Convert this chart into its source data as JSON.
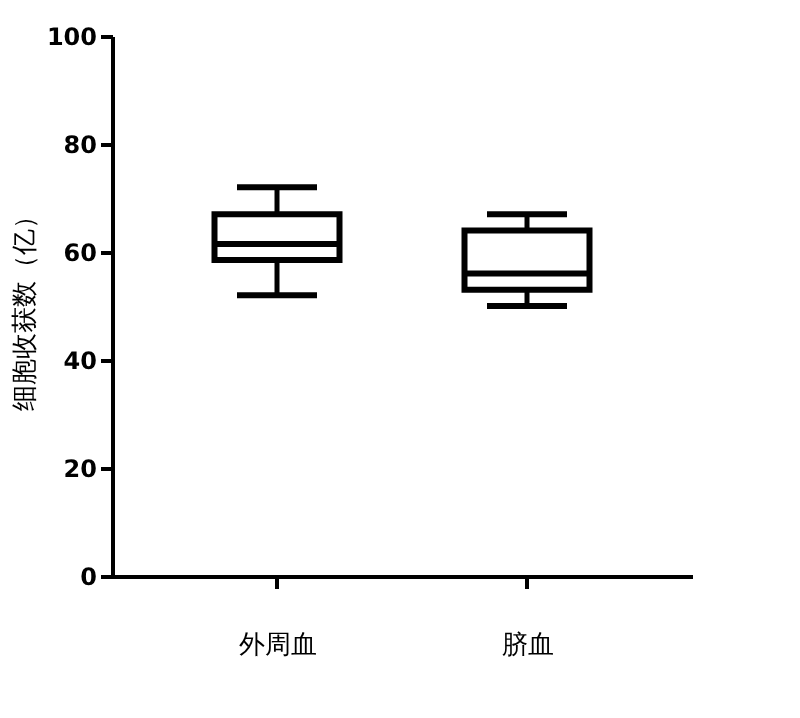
{
  "chart_data": {
    "type": "box",
    "ylabel": "细胞收获数（亿）",
    "categories": [
      "外周血",
      "脐血"
    ],
    "boxes": [
      {
        "low": 52,
        "q1": 58.5,
        "median": 61.5,
        "q3": 67,
        "high": 72
      },
      {
        "low": 50,
        "q1": 53,
        "median": 56,
        "q3": 64,
        "high": 67
      }
    ],
    "ylim": [
      0,
      100
    ],
    "yticks": [
      0,
      20,
      40,
      60,
      80,
      100
    ],
    "grid": false
  }
}
